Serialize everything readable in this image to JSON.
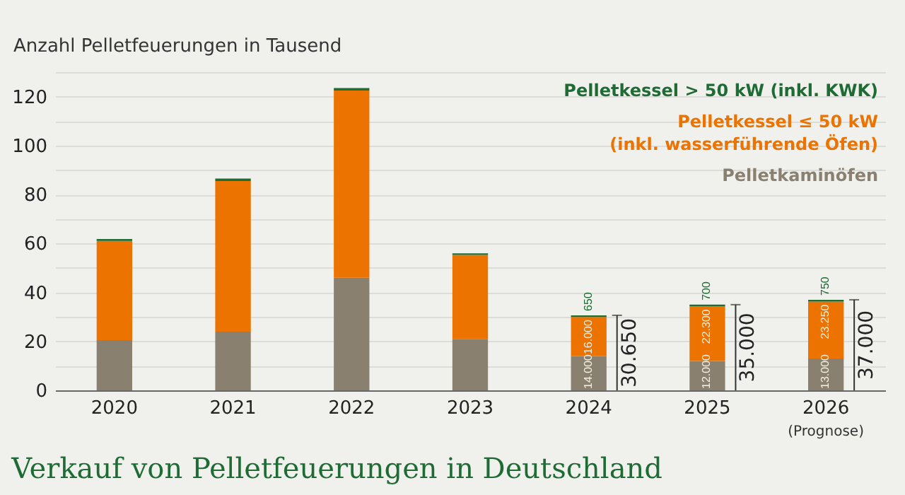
{
  "chart_data": {
    "type": "bar",
    "stacked": true,
    "title": "Verkauf von Pelletfeuerungen in Deutschland",
    "ylabel": "Anzahl Pelletfeuerungen in Tausend",
    "categories": [
      "2020",
      "2021",
      "2022",
      "2023",
      "2024",
      "2025",
      "2026"
    ],
    "series": [
      {
        "name": "Pelletkaminöfen",
        "color": "#8a8070",
        "values": [
          20.5,
          24,
          46,
          21,
          14,
          12,
          13
        ]
      },
      {
        "name": "Pelletkessel ≤ 50 kW (inkl. wasserführende Öfen)",
        "color": "#ec7300",
        "values": [
          40.5,
          61.5,
          76.5,
          34.3,
          16,
          22.3,
          23.25
        ]
      },
      {
        "name": "Pelletkessel > 50 kW (inkl. KWK)",
        "color": "#1e6b34",
        "values": [
          0.8,
          1,
          1,
          0.7,
          0.65,
          0.7,
          0.75
        ]
      }
    ],
    "totals": [
      null,
      null,
      null,
      null,
      "30.650",
      "35.000",
      "37.000"
    ],
    "annotations": [
      "(Prognose)",
      {
        "text": "14.000",
        "x": "2024",
        "y": 0
      },
      {
        "text": "12.000",
        "x": "2025",
        "y": 0
      },
      {
        "text": "13.000",
        "x": "2026",
        "y": 0
      },
      {
        "text": "16.000",
        "x": "2024",
        "y": 30
      },
      {
        "text": "22.300",
        "x": "2025",
        "y": 34.3
      },
      {
        "text": "23.250",
        "x": "2026",
        "y": 36.25
      },
      {
        "text": "650",
        "x": "2024",
        "y": 30.65
      },
      {
        "text": "700",
        "x": "2025",
        "y": 35
      },
      {
        "text": "750",
        "x": "2026",
        "y": 37
      }
    ],
    "ylim": [
      0,
      130
    ],
    "yticks": [
      0,
      {
        "value": 10,
        "label": null
      },
      20,
      {
        "value": 30,
        "label": null
      },
      40,
      {
        "value": 50,
        "label": null
      },
      60,
      {
        "value": 70,
        "label": null
      },
      80,
      {
        "value": 90,
        "label": null
      },
      100,
      {
        "value": 110,
        "label": null
      },
      120,
      {
        "value": 130,
        "label": null
      }
    ],
    "grid": "y",
    "legend": "top right"
  }
}
